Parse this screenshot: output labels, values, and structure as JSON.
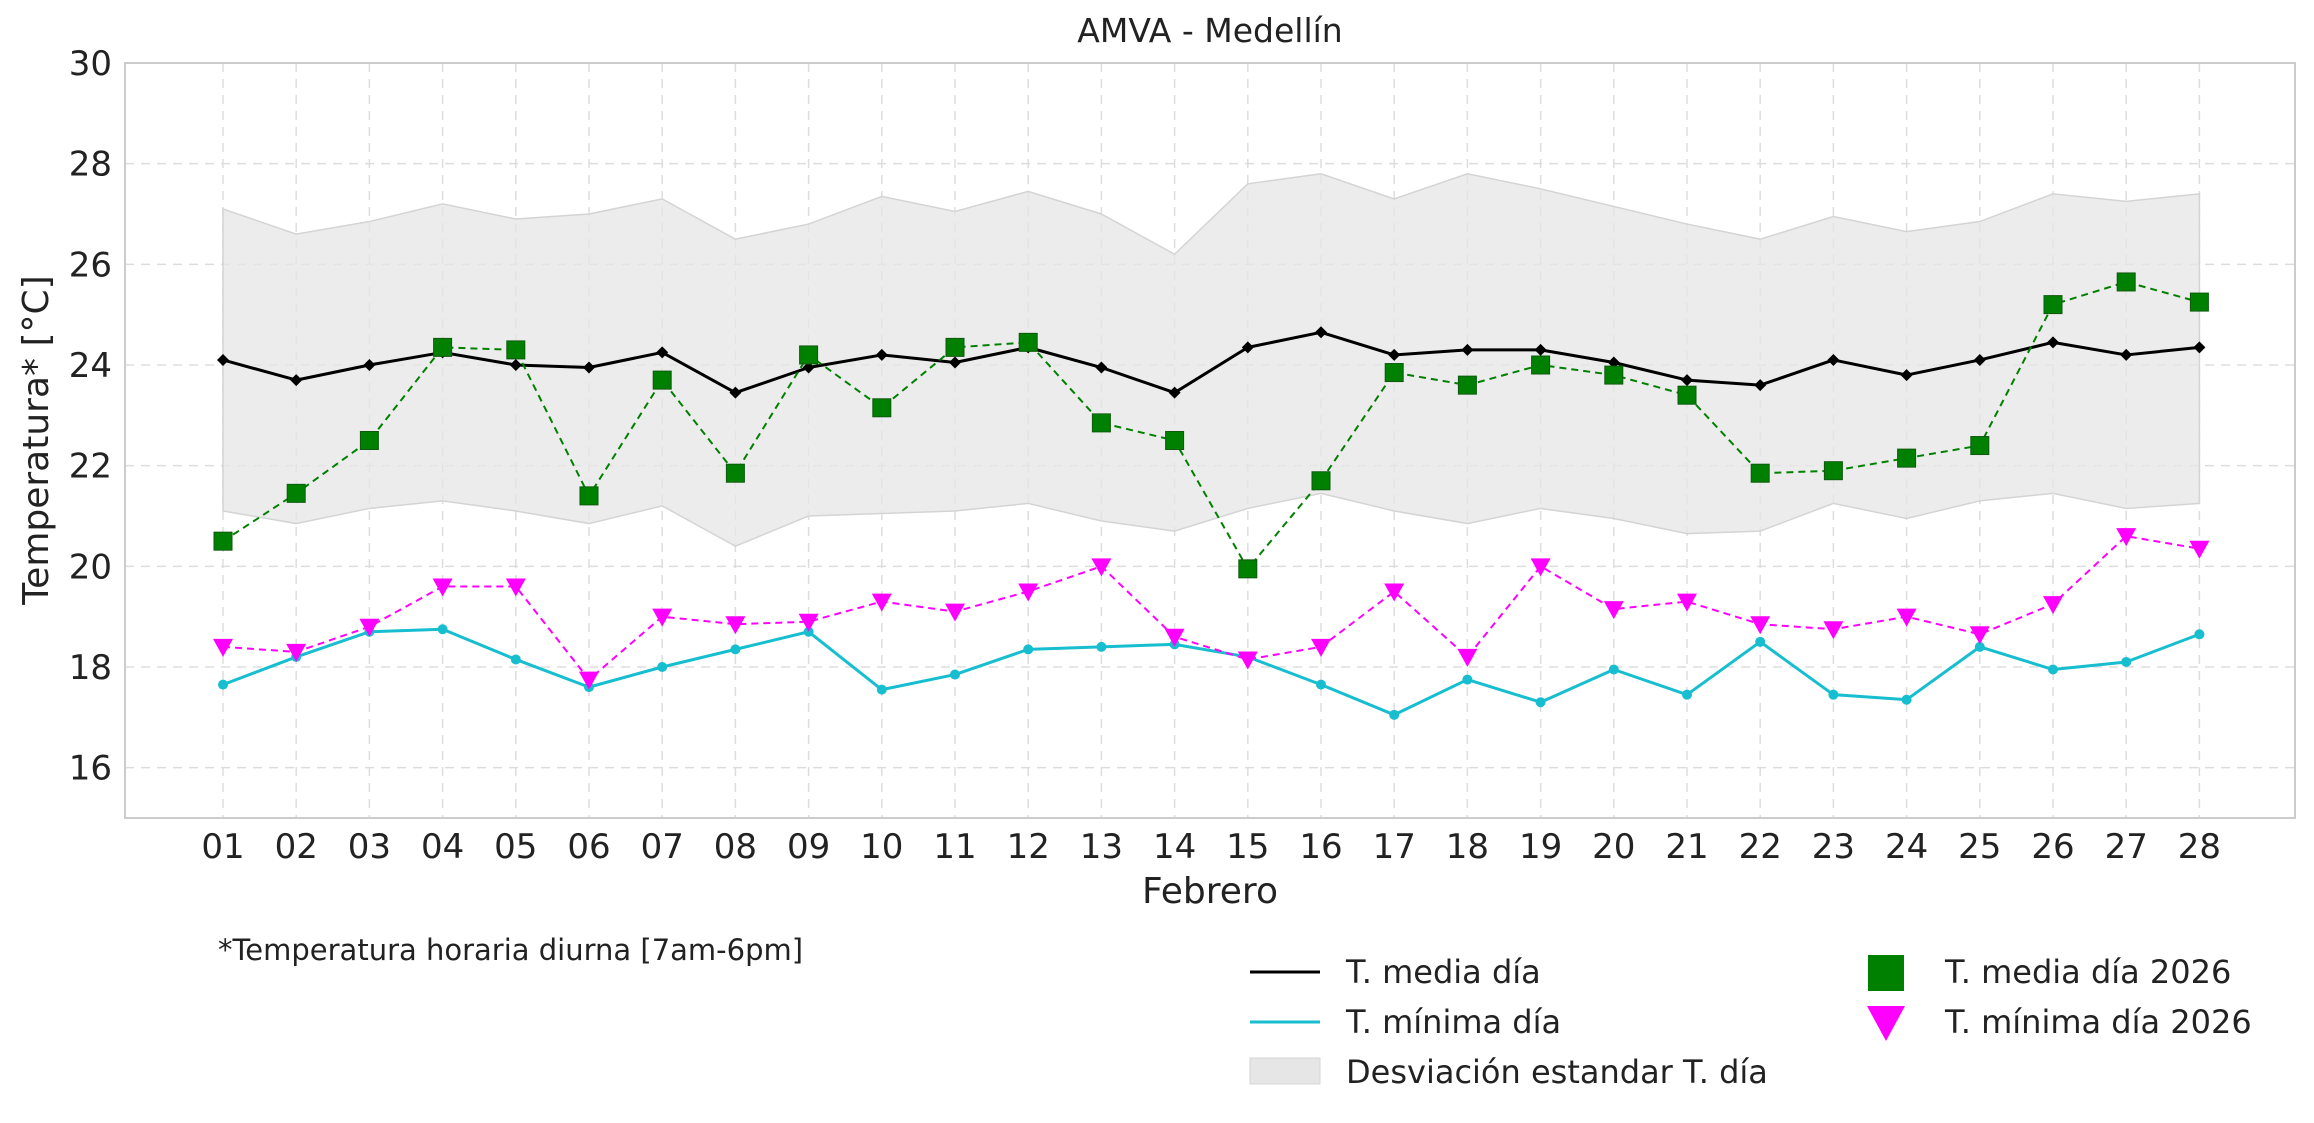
{
  "chart_data": {
    "type": "line",
    "title": "AMVA - Medellín",
    "xlabel": "Febrero",
    "ylabel": "Temperatura* [°C]",
    "ylim": [
      15,
      30
    ],
    "yticks": [
      16,
      18,
      20,
      22,
      24,
      26,
      28,
      30
    ],
    "grid": true,
    "legend_position": "bottom-right",
    "footnote": "*Temperatura horaria diurna [7am-6pm]",
    "categories": [
      "01",
      "02",
      "03",
      "04",
      "05",
      "06",
      "07",
      "08",
      "09",
      "10",
      "11",
      "12",
      "13",
      "14",
      "15",
      "16",
      "17",
      "18",
      "19",
      "20",
      "21",
      "22",
      "23",
      "24",
      "25",
      "26",
      "27",
      "28"
    ],
    "series": [
      {
        "name": "T. media día",
        "style": "line",
        "color": "#000000",
        "marker": "diamond",
        "values": [
          24.1,
          23.7,
          24.0,
          24.25,
          24.0,
          23.95,
          24.25,
          23.45,
          23.95,
          24.2,
          24.05,
          24.35,
          23.95,
          23.45,
          24.35,
          24.65,
          24.2,
          24.3,
          24.3,
          24.05,
          23.7,
          23.6,
          24.1,
          23.8,
          24.1,
          24.45,
          24.2,
          24.35
        ]
      },
      {
        "name": "T. mínima día",
        "style": "line",
        "color": "#17becf",
        "marker": "circle",
        "values": [
          17.65,
          18.2,
          18.7,
          18.75,
          18.15,
          17.6,
          18.0,
          18.35,
          18.7,
          17.55,
          17.85,
          18.35,
          18.4,
          18.45,
          18.2,
          17.65,
          17.05,
          17.75,
          17.3,
          17.95,
          17.45,
          18.5,
          17.45,
          17.35,
          18.4,
          17.95,
          18.1,
          18.65
        ]
      },
      {
        "name": "T. media día 2026",
        "style": "dashed",
        "color": "#008000",
        "marker": "square",
        "values": [
          20.5,
          21.45,
          22.5,
          24.35,
          24.3,
          21.4,
          23.7,
          21.85,
          24.2,
          23.15,
          24.35,
          24.45,
          22.85,
          22.5,
          19.95,
          21.7,
          23.85,
          23.6,
          24.0,
          23.8,
          23.4,
          21.85,
          21.9,
          22.15,
          22.4,
          25.2,
          25.65,
          25.25
        ]
      },
      {
        "name": "T. mínima día 2026",
        "style": "dashed",
        "color": "#ff00ff",
        "marker": "triangle-down",
        "values": [
          18.4,
          18.3,
          18.8,
          19.6,
          19.6,
          17.75,
          19.0,
          18.85,
          18.9,
          19.3,
          19.1,
          19.5,
          20.0,
          18.6,
          18.15,
          18.4,
          19.5,
          18.2,
          20.0,
          19.15,
          19.3,
          18.85,
          18.75,
          19.0,
          18.65,
          19.25,
          20.6,
          20.35
        ]
      }
    ],
    "band": {
      "name": "Desviación estandar T. día",
      "color": "#e6e6e6",
      "upper": [
        27.1,
        26.6,
        26.85,
        27.2,
        26.9,
        27.0,
        27.3,
        26.5,
        26.8,
        27.35,
        27.05,
        27.45,
        27.0,
        26.2,
        27.6,
        27.8,
        27.3,
        27.8,
        27.5,
        27.15,
        26.8,
        26.5,
        26.95,
        26.65,
        26.85,
        27.4,
        27.25,
        27.4
      ],
      "lower": [
        21.1,
        20.85,
        21.15,
        21.3,
        21.1,
        20.85,
        21.2,
        20.4,
        21.0,
        21.05,
        21.1,
        21.25,
        20.9,
        20.7,
        21.15,
        21.45,
        21.1,
        20.85,
        21.15,
        20.95,
        20.65,
        20.7,
        21.25,
        20.95,
        21.3,
        21.45,
        21.15,
        21.25
      ]
    }
  }
}
